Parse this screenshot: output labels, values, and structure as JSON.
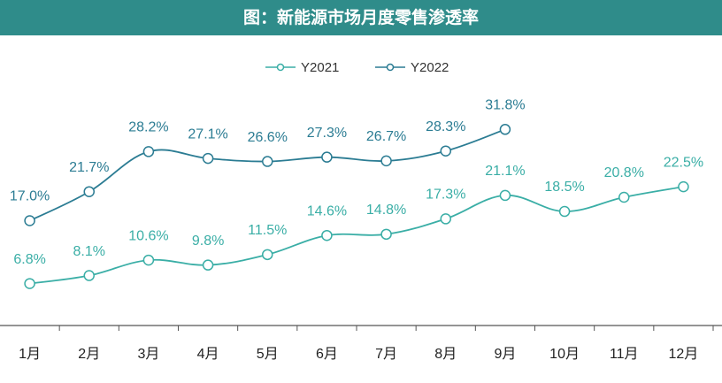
{
  "chart_data": {
    "type": "line",
    "title": "图：新能源市场月度零售渗透率",
    "categories": [
      "1月",
      "2月",
      "3月",
      "4月",
      "5月",
      "6月",
      "7月",
      "8月",
      "9月",
      "10月",
      "11月",
      "12月"
    ],
    "series": [
      {
        "name": "Y2021",
        "color": "#3aaea6",
        "values": [
          6.8,
          8.1,
          10.6,
          9.8,
          11.5,
          14.6,
          14.8,
          17.3,
          21.1,
          18.5,
          20.8,
          22.5
        ],
        "value_labels": [
          "6.8%",
          "8.1%",
          "10.6%",
          "9.8%",
          "11.5%",
          "14.6%",
          "14.8%",
          "17.3%",
          "21.1%",
          "18.5%",
          "20.8%",
          "22.5%"
        ]
      },
      {
        "name": "Y2022",
        "color": "#2b7c93",
        "values": [
          17.0,
          21.7,
          28.2,
          27.1,
          26.6,
          27.3,
          26.7,
          28.3,
          31.8,
          null,
          null,
          null
        ],
        "value_labels": [
          "17.0%",
          "21.7%",
          "28.2%",
          "27.1%",
          "26.6%",
          "27.3%",
          "26.7%",
          "28.3%",
          "31.8%",
          null,
          null,
          null
        ]
      }
    ],
    "ylim": [
      0,
      35
    ]
  }
}
